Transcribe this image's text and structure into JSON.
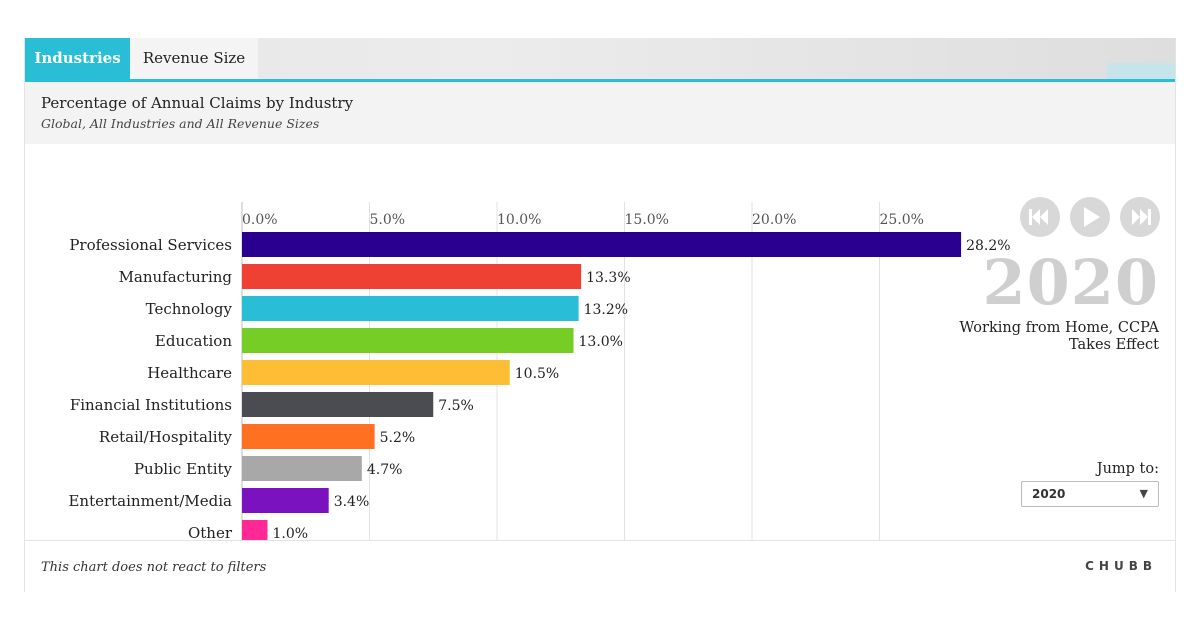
{
  "tabs": [
    {
      "label": "Industries",
      "active": true
    },
    {
      "label": "Revenue Size",
      "active": false
    }
  ],
  "header": {
    "title": "Percentage of Annual Claims by Industry",
    "subtitle": "Global, All Industries and All Revenue Sizes"
  },
  "chart_data": {
    "type": "bar",
    "orientation": "horizontal",
    "categories": [
      "Professional Services",
      "Manufacturing",
      "Technology",
      "Education",
      "Healthcare",
      "Financial Institutions",
      "Retail/Hospitality",
      "Public Entity",
      "Entertainment/Media",
      "Other"
    ],
    "values": [
      28.2,
      13.3,
      13.2,
      13.0,
      10.5,
      7.5,
      5.2,
      4.7,
      3.4,
      1.0
    ],
    "value_labels": [
      "28.2%",
      "13.3%",
      "13.2%",
      "13.0%",
      "10.5%",
      "7.5%",
      "5.2%",
      "4.7%",
      "3.4%",
      "1.0%"
    ],
    "colors": [
      "#2a0090",
      "#ee4133",
      "#29bdd6",
      "#76cd26",
      "#fdbd35",
      "#4a4c52",
      "#ff7020",
      "#a8a8a8",
      "#7a12c0",
      "#ff2895"
    ],
    "xticks": [
      0,
      5,
      10,
      15,
      20,
      25
    ],
    "xtick_labels": [
      "0.0%",
      "5.0%",
      "10.0%",
      "15.0%",
      "20.0%",
      "25.0%"
    ],
    "xlim": [
      0,
      30
    ],
    "grid": true
  },
  "controls": {
    "icons": [
      "rewind-icon",
      "play-icon",
      "fast-forward-icon"
    ],
    "year": "2020",
    "event": "Working from Home, CCPA Takes Effect",
    "jump_label": "Jump to:",
    "jump_value": "2020",
    "jump_arrow": "▼"
  },
  "footer": {
    "note": "This chart does not react to filters",
    "logo": "CHUBB"
  }
}
